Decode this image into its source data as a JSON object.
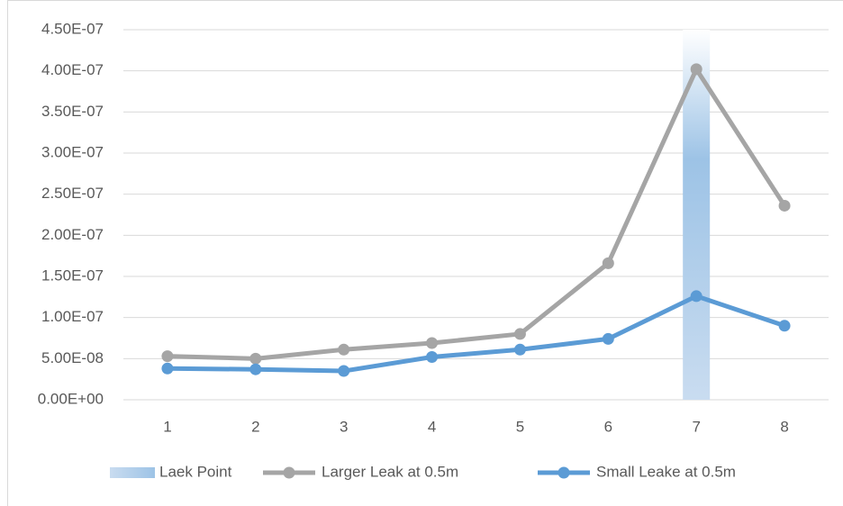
{
  "chart_data": {
    "type": "combo",
    "categories": [
      "1",
      "2",
      "3",
      "4",
      "5",
      "6",
      "7",
      "8"
    ],
    "series": [
      {
        "name": "Laek Point",
        "type": "bar",
        "color": "#5b9bd5",
        "values": [
          null,
          null,
          null,
          null,
          null,
          null,
          4.5e-07,
          null
        ]
      },
      {
        "name": "Larger Leak at 0.5m",
        "type": "line",
        "color": "#a5a5a5",
        "values": [
          5.3e-08,
          5e-08,
          6.1e-08,
          6.9e-08,
          8e-08,
          1.66e-07,
          4.02e-07,
          2.36e-07
        ]
      },
      {
        "name": "Small Leake at 0.5m",
        "type": "line",
        "color": "#5b9bd5",
        "values": [
          3.8e-08,
          3.7e-08,
          3.5e-08,
          5.2e-08,
          6.1e-08,
          7.4e-08,
          1.26e-07,
          9e-08
        ]
      }
    ],
    "ylim": [
      0,
      4.5e-07
    ],
    "yticks": [
      {
        "value": 0,
        "label": "0.00E+00"
      },
      {
        "value": 5e-08,
        "label": "5.00E-08"
      },
      {
        "value": 1e-07,
        "label": "1.00E-07"
      },
      {
        "value": 1.5e-07,
        "label": "1.50E-07"
      },
      {
        "value": 2e-07,
        "label": "2.00E-07"
      },
      {
        "value": 2.5e-07,
        "label": "2.50E-07"
      },
      {
        "value": 3e-07,
        "label": "3.00E-07"
      },
      {
        "value": 3.5e-07,
        "label": "3.50E-07"
      },
      {
        "value": 4e-07,
        "label": "4.00E-07"
      },
      {
        "value": 4.5e-07,
        "label": "4.50E-07"
      }
    ],
    "grid": true,
    "legend": "bottom"
  }
}
